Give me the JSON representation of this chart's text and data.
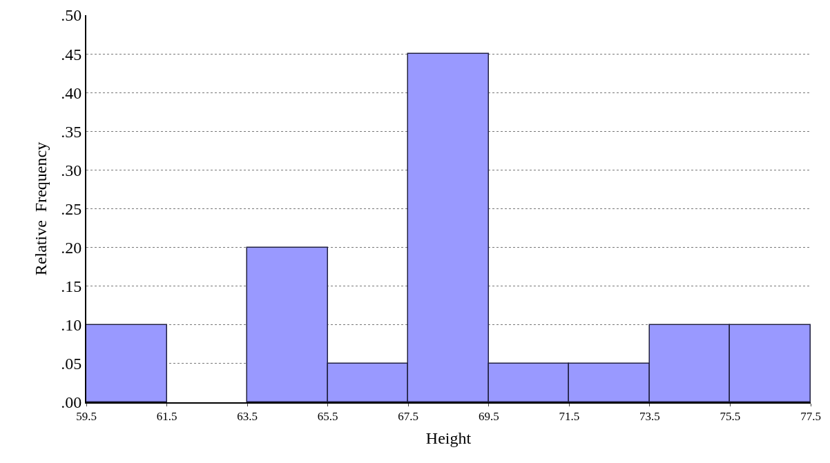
{
  "chart_data": {
    "type": "histogram",
    "xlabel": "Height",
    "ylabel": "Relative  Frequency",
    "bins": [
      59.5,
      61.5,
      63.5,
      65.5,
      67.5,
      69.5,
      71.5,
      73.5,
      75.5,
      77.5
    ],
    "values": [
      0.1,
      0,
      0.2,
      0.05,
      0.45,
      0.05,
      0.05,
      0.1,
      0.1
    ],
    "color": "#9999ff",
    "xlim": [
      59.5,
      77.5
    ],
    "xticks": [
      59.5,
      61.5,
      63.5,
      65.5,
      67.5,
      69.5,
      71.5,
      73.5,
      75.5,
      77.5
    ],
    "ylim": [
      0,
      0.5
    ],
    "yticks": [
      {
        "value": 0,
        "label": ".00"
      },
      {
        "value": 0.05,
        "label": ".05"
      },
      {
        "value": 0.1,
        "label": ".10"
      },
      {
        "value": 0.15,
        "label": ".15"
      },
      {
        "value": 0.2,
        "label": ".20"
      },
      {
        "value": 0.25,
        "label": ".25"
      },
      {
        "value": 0.3,
        "label": ".30"
      },
      {
        "value": 0.35,
        "label": ".35"
      },
      {
        "value": 0.4,
        "label": ".40"
      },
      {
        "value": 0.45,
        "label": ".45"
      },
      {
        "value": 0.5,
        "label": ".50"
      }
    ],
    "grid": "y",
    "line_style": "dotted"
  }
}
